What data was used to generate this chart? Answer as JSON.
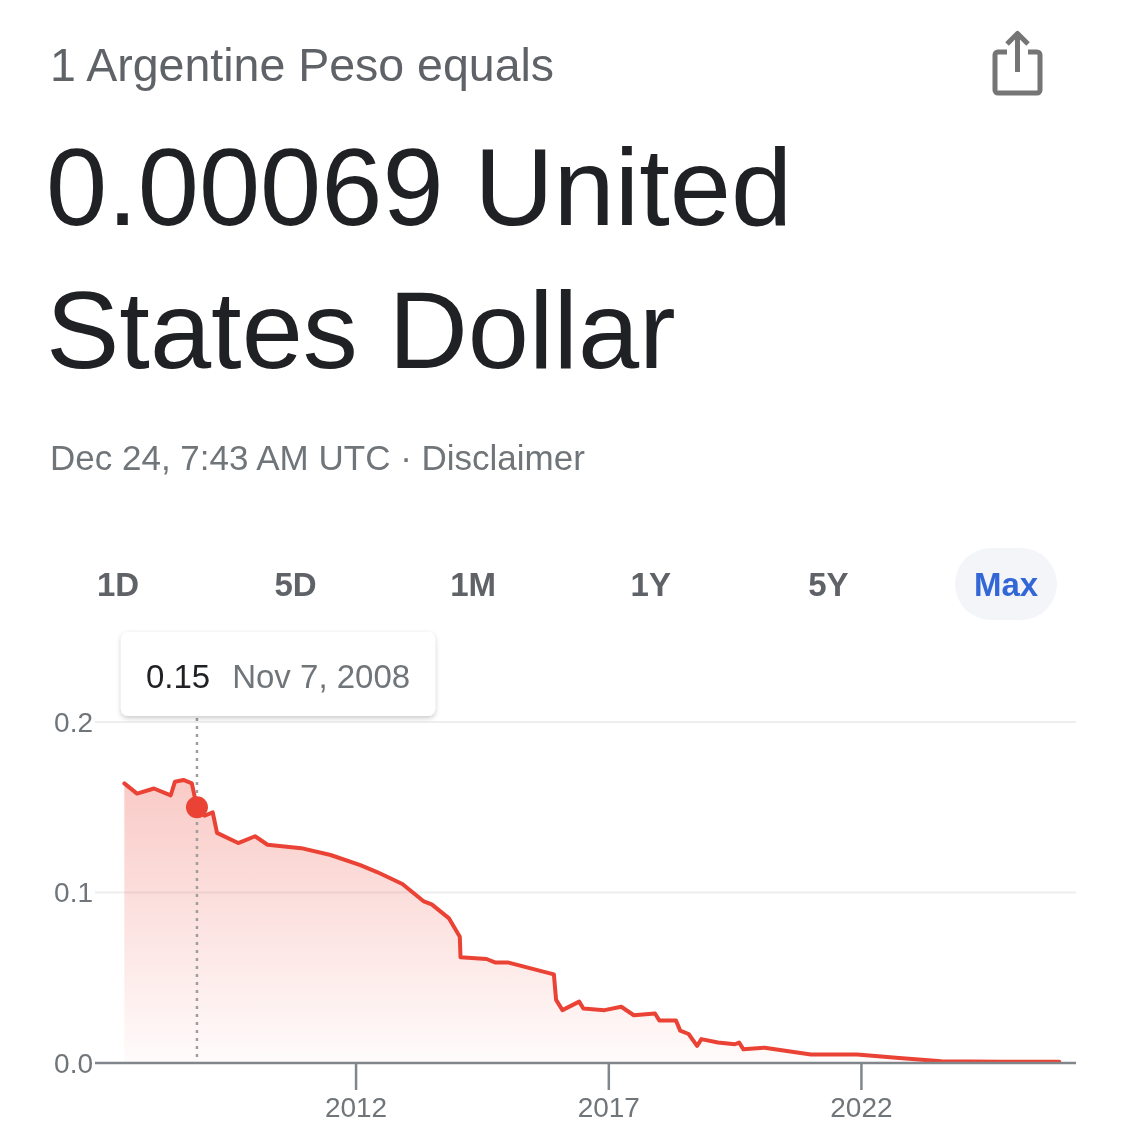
{
  "chart_data": {
    "type": "area",
    "title": "1 Argentine Peso equals",
    "subtitle": "0.00069 United States Dollar",
    "annotations": [
      "Dec 24, 7:43 AM UTC · Disclaimer",
      "1D",
      "5D",
      "1M",
      "1Y",
      "5Y",
      "Max",
      "0.15"
    ],
    "series": [
      {
        "color": "#ea4335",
        "x": [
          "2007-06",
          "2007-09",
          "2008-01",
          "2008-05",
          "2008-06",
          "2008-08",
          "2008-10",
          "2008-11-07",
          "2009-01",
          "2009-03",
          "2009-04",
          "2009-09",
          "2010-01",
          "2010-04",
          "2010-12",
          "2011-07",
          "2012-02",
          "2012-06",
          "2012-12",
          "2013-05",
          "2013-07",
          "2013-11",
          "2014-01-20",
          "2014-01-25",
          "2014-08",
          "2014-10",
          "2015-01",
          "2015-12-01",
          "2015-12-17",
          "2016-02",
          "2016-06",
          "2016-07",
          "2016-12",
          "2017-04",
          "2017-07",
          "2017-12",
          "2018-01",
          "2018-05",
          "2018-06",
          "2018-08",
          "2018-10",
          "2018-11",
          "2019-03",
          "2019-07",
          "2019-08",
          "2019-09",
          "2020-02",
          "2021-01",
          "2021-12",
          "2022-10",
          "2023-08",
          "2024-10",
          "2025-12"
        ],
        "values": [
          0.164,
          0.158,
          0.161,
          0.157,
          0.165,
          0.166,
          0.164,
          0.15,
          0.145,
          0.147,
          0.135,
          0.129,
          0.133,
          0.128,
          0.126,
          0.122,
          0.116,
          0.112,
          0.105,
          0.095,
          0.093,
          0.085,
          0.074,
          0.062,
          0.061,
          0.059,
          0.059,
          0.052,
          0.037,
          0.031,
          0.036,
          0.032,
          0.031,
          0.033,
          0.028,
          0.029,
          0.025,
          0.025,
          0.019,
          0.017,
          0.01,
          0.014,
          0.012,
          0.011,
          0.012,
          0.008,
          0.009,
          0.005,
          0.005,
          0.003,
          0.001,
          0.0008,
          0.0007
        ]
      },
      {
        "type": "scatter",
        "color": "#ea4335",
        "x": [
          "2008-11-07"
        ],
        "values": [
          0.15
        ]
      }
    ],
    "xlim": [
      "2006-11",
      "2026-04"
    ],
    "xticks": [
      "2012",
      "2017",
      "2022"
    ],
    "ylim": [
      0,
      0.2
    ],
    "yticks": [
      {
        "value": 0,
        "label": "0.0"
      },
      0.1,
      0.2
    ],
    "grid": "y",
    "ref_lines": [
      {
        "axis": "x",
        "value": "2008-11-07",
        "label": "Nov 7, 2008",
        "color": "#9e9e9e",
        "line_style": "dotted"
      }
    ]
  }
}
